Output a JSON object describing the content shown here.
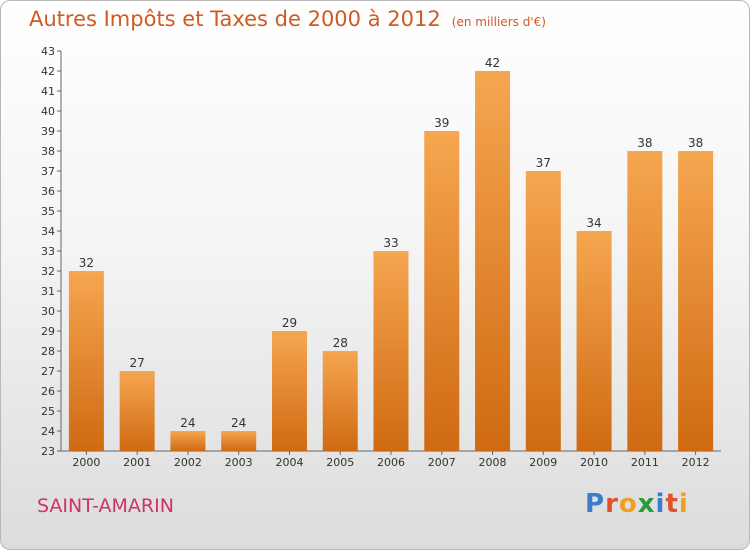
{
  "header": {
    "title": "Autres Impôts et Taxes de 2000 à 2012",
    "unit": "(en milliers d'€)"
  },
  "commune": "SAINT-AMARIN",
  "logo": {
    "letters": [
      "P",
      "r",
      "o",
      "x",
      "i",
      "t",
      "i"
    ],
    "colors": [
      "#3a7dc9",
      "#e0522b",
      "#f0a020",
      "#2a9a3a",
      "#3a7dc9",
      "#e0522b",
      "#f0a020"
    ]
  },
  "chart_data": {
    "type": "bar",
    "title": "Autres Impôts et Taxes de 2000 à 2012",
    "unit": "(en milliers d'€)",
    "categories": [
      "2000",
      "2001",
      "2002",
      "2003",
      "2004",
      "2005",
      "2006",
      "2007",
      "2008",
      "2009",
      "2010",
      "2011",
      "2012"
    ],
    "values": [
      32,
      27,
      24,
      24,
      29,
      28,
      33,
      39,
      42,
      37,
      34,
      38,
      38
    ],
    "ylim": [
      23,
      43
    ],
    "yticks": [
      23,
      24,
      25,
      26,
      27,
      28,
      29,
      30,
      31,
      32,
      33,
      34,
      35,
      36,
      37,
      38,
      39,
      40,
      41,
      42,
      43
    ],
    "grid": false,
    "legend": "none",
    "bar_color": "#f0922e"
  }
}
